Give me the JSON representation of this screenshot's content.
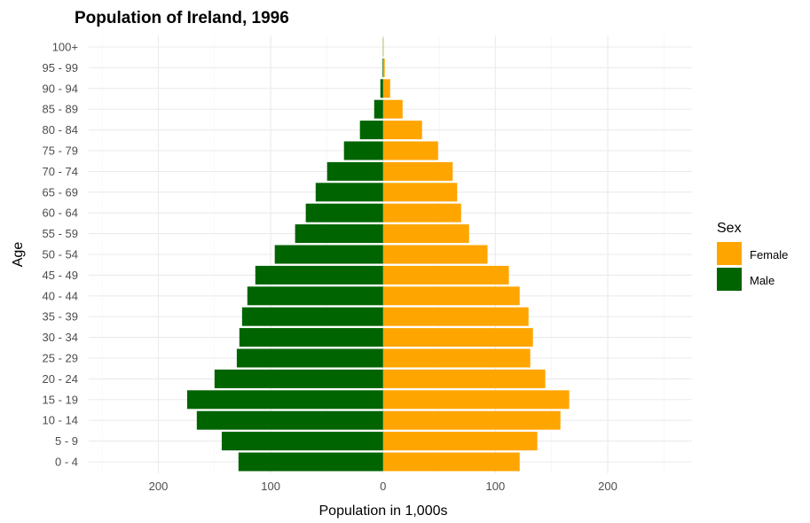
{
  "chart_data": {
    "type": "bar",
    "orientation": "horizontal",
    "title": "Population of Ireland, 1996",
    "xlabel": "Population in 1,000s",
    "ylabel": "Age",
    "xlim": [
      -262,
      275
    ],
    "x_ticks": [
      -200,
      -100,
      0,
      100,
      200
    ],
    "x_tick_labels": [
      "200",
      "100",
      "0",
      "100",
      "200"
    ],
    "grid": true,
    "categories": [
      "0 - 4",
      "5 - 9",
      "10 - 14",
      "15 - 19",
      "20 - 24",
      "25 - 29",
      "30 - 34",
      "35 - 39",
      "40 - 44",
      "45 - 49",
      "50 - 54",
      "55 - 59",
      "60 - 64",
      "65 - 69",
      "70 - 74",
      "75 - 79",
      "80 - 84",
      "85 - 89",
      "90 - 94",
      "95 - 99",
      "100+"
    ],
    "legend": {
      "title": "Sex",
      "position": "right"
    },
    "series": [
      {
        "name": "Female",
        "color": "#FFA500",
        "values": [
          121.6,
          137.3,
          157.9,
          165.7,
          144.4,
          131,
          133.4,
          129.5,
          121.6,
          112,
          93,
          76.6,
          69.5,
          66,
          62,
          49,
          34.7,
          17.4,
          6.3,
          1.5,
          0.5
        ]
      },
      {
        "name": "Male",
        "color": "#006400",
        "values": [
          128.7,
          143.6,
          165.8,
          174.4,
          150,
          130.2,
          127.9,
          125.5,
          120.8,
          113.7,
          96.4,
          78.3,
          68.8,
          60,
          49.8,
          34.8,
          20.6,
          7.9,
          2.4,
          0.5,
          0.1
        ]
      }
    ]
  }
}
